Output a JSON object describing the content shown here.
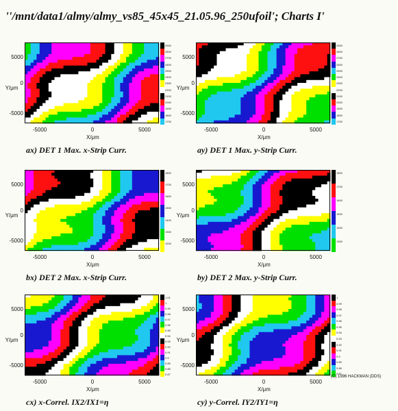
{
  "title": "''/mnt/data1/almy/almy_vs85_45x45_21.05.96_250ufoil'; Charts I'",
  "copyright": "(C) 1996 HACKMAN (DDS)",
  "palette": [
    "#ffffff",
    "#ffff00",
    "#00e000",
    "#20c8f0",
    "#1818d0",
    "#ff00ff",
    "#ff1010",
    "#000000"
  ],
  "chart_data": [
    {
      "type": "heatmap",
      "title": "ax) DET 1 Max. x-Strip Curr.",
      "xlabel": "X/μm",
      "ylabel": "Y/μm",
      "x_ticks": [
        "-5000",
        "0",
        "5000"
      ],
      "y_ticks": [
        "5000",
        "0",
        "-5000"
      ],
      "colorbar": [
        "2900",
        "2800",
        "2700",
        "2600",
        "2500",
        "2400",
        "2300",
        "2200",
        "2100",
        "2000",
        "1900",
        "1800",
        "1700"
      ],
      "pattern": {
        "phase": 0.0,
        "period": 2.4,
        "dir": 1
      }
    },
    {
      "type": "heatmap",
      "title": "ay) DET 1 Max. y-Strip Curr.",
      "xlabel": "X/μm",
      "ylabel": "Y/μm",
      "x_ticks": [
        "-5000",
        "0",
        "5000"
      ],
      "y_ticks": [
        "5000",
        "0",
        "-5000"
      ],
      "colorbar": [
        "2900",
        "2800",
        "2700",
        "2600",
        "2500",
        "2400",
        "2300",
        "2200",
        "2100",
        "2000",
        "1900",
        "1800",
        "1700"
      ],
      "pattern": {
        "phase": 1.3,
        "period": 2.6,
        "dir": 1
      }
    },
    {
      "type": "heatmap",
      "title": "bx) DET 2 Max. x-Strip Curr.",
      "xlabel": "X/μm",
      "ylabel": "Y/μm",
      "x_ticks": [
        "-5000",
        "0",
        "5000"
      ],
      "y_ticks": [
        "5000",
        "0",
        "-5000"
      ],
      "colorbar": [
        "1800",
        "1700",
        "1600",
        "1500",
        "1400",
        "1300",
        "1200"
      ],
      "pattern": {
        "phase": 0.6,
        "period": 2.2,
        "dir": 1
      }
    },
    {
      "type": "heatmap",
      "title": "by) DET 2 Max. y-Strip Curr.",
      "xlabel": "X/μm",
      "ylabel": "Y/μm",
      "x_ticks": [
        "-5000",
        "0",
        "5000"
      ],
      "y_ticks": [
        "5000",
        "0",
        "-5000"
      ],
      "colorbar": [
        "1800",
        "1700",
        "1600",
        "1500",
        "1400",
        "1300"
      ],
      "pattern": {
        "phase": 2.0,
        "period": 2.3,
        "dir": 1
      }
    },
    {
      "type": "heatmap",
      "title": "cx) x-Correl. IX2/IX1=η",
      "xlabel": "X/μm",
      "ylabel": "Y/μm",
      "x_ticks": [
        "-5000",
        "0",
        "5000"
      ],
      "y_ticks": [
        "5000",
        "0",
        "-5000"
      ],
      "colorbar": [
        "1.01",
        "1",
        "0.99",
        "0.98",
        "0.97",
        "0.96",
        "0.95",
        "0.94",
        "0.93",
        "0.92",
        "0.91",
        "0.9",
        "0.89",
        "0.88",
        "0.87"
      ],
      "pattern": {
        "phase": 3.1,
        "period": 2.5,
        "dir": 1
      }
    },
    {
      "type": "heatmap",
      "title": "cy) y-Correl. IY2/IY1=η",
      "xlabel": "X/μm",
      "ylabel": "Y/μm",
      "x_ticks": [
        "-5000",
        "0",
        "5000"
      ],
      "y_ticks": [
        "5000",
        "0",
        "-5000"
      ],
      "colorbar": [
        "1",
        "0.99",
        "0.98",
        "0.97",
        "0.96",
        "0.95",
        "0.94",
        "0.93",
        "0.92",
        "0.91",
        "0.9",
        "0.89",
        "0.88",
        "0.87"
      ],
      "pattern": {
        "phase": 4.2,
        "period": 2.4,
        "dir": 1
      }
    }
  ]
}
